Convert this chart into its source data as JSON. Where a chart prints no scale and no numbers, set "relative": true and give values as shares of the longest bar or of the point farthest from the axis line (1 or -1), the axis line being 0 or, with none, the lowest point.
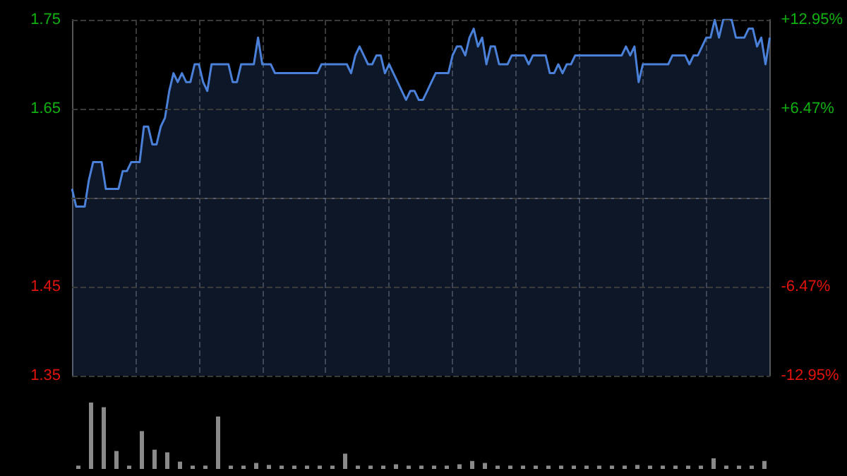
{
  "chart_data": [
    {
      "type": "area",
      "categories": [
        null,
        null,
        null,
        null,
        null,
        null,
        null,
        null,
        null,
        null,
        null,
        null,
        null,
        null,
        null,
        null,
        null,
        null,
        null,
        null,
        null,
        null,
        null,
        null,
        null,
        null,
        null,
        null,
        null,
        null,
        null,
        null,
        null,
        null,
        null,
        null,
        null,
        null,
        null,
        null,
        null,
        null,
        null,
        null,
        null,
        null,
        null,
        null,
        null,
        null,
        null,
        null,
        null,
        null,
        null,
        null,
        null,
        null,
        null,
        null,
        null,
        null,
        null,
        null,
        null,
        null,
        null,
        null,
        null,
        null,
        null,
        null,
        null,
        null,
        null,
        null,
        null,
        null,
        null,
        null,
        null,
        null,
        null,
        null,
        null,
        null,
        null,
        null,
        null,
        null,
        null,
        null,
        null,
        null,
        null,
        null,
        null,
        null,
        null,
        null,
        null,
        null,
        null,
        null,
        null,
        null,
        null,
        null,
        null,
        null,
        null,
        null,
        null,
        null,
        null,
        null,
        null,
        null,
        null,
        null,
        null,
        null,
        null,
        null,
        null,
        null,
        null,
        null,
        null,
        null,
        null,
        null,
        null,
        null,
        null,
        null,
        null,
        null,
        null,
        null,
        null,
        null,
        null,
        null,
        null,
        null,
        null,
        null,
        null,
        null,
        null,
        null,
        null,
        null,
        null,
        null,
        null,
        null,
        null,
        null,
        null,
        null,
        null,
        null,
        null,
        null
      ],
      "ylim": [
        1.35,
        1.75
      ],
      "yticks": [
        1.35,
        1.45,
        {
          "value": 1.55,
          "label": null
        },
        1.65,
        1.75
      ],
      "y2lim": [
        -12.95,
        12.95
      ],
      "y2ticks": [
        {
          "value": -12.95,
          "label": "-12.95%"
        },
        {
          "value": -6.47,
          "label": "-6.47%"
        },
        {
          "value": 6.47,
          "label": "+6.47%"
        },
        {
          "value": 12.95,
          "label": "+12.95%"
        }
      ],
      "grid": true,
      "marker": "none",
      "series": [
        {
          "color": "#4a80d8",
          "values": [
            1.56,
            1.54,
            1.54,
            1.54,
            1.57,
            1.59,
            1.59,
            1.59,
            1.56,
            1.56,
            1.56,
            1.56,
            1.58,
            1.58,
            1.59,
            1.59,
            1.59,
            1.63,
            1.63,
            1.61,
            1.61,
            1.63,
            1.64,
            1.67,
            1.69,
            1.68,
            1.69,
            1.68,
            1.68,
            1.7,
            1.7,
            1.68,
            1.67,
            1.7,
            1.7,
            1.7,
            1.7,
            1.7,
            1.68,
            1.68,
            1.7,
            1.7,
            1.7,
            1.7,
            1.73,
            1.7,
            1.7,
            1.7,
            1.69,
            1.69,
            1.69,
            1.69,
            1.69,
            1.69,
            1.69,
            1.69,
            1.69,
            1.69,
            1.69,
            1.7,
            1.7,
            1.7,
            1.7,
            1.7,
            1.7,
            1.7,
            1.69,
            1.71,
            1.72,
            1.71,
            1.7,
            1.7,
            1.71,
            1.71,
            1.69,
            1.7,
            1.69,
            1.68,
            1.67,
            1.66,
            1.67,
            1.67,
            1.66,
            1.66,
            1.67,
            1.68,
            1.69,
            1.69,
            1.69,
            1.69,
            1.71,
            1.72,
            1.72,
            1.71,
            1.73,
            1.74,
            1.72,
            1.73,
            1.7,
            1.72,
            1.72,
            1.7,
            1.7,
            1.7,
            1.71,
            1.71,
            1.71,
            1.71,
            1.7,
            1.71,
            1.71,
            1.71,
            1.71,
            1.69,
            1.69,
            1.7,
            1.69,
            1.7,
            1.7,
            1.71,
            1.71,
            1.71,
            1.71,
            1.71,
            1.71,
            1.71,
            1.71,
            1.71,
            1.71,
            1.71,
            1.71,
            1.72,
            1.71,
            1.72,
            1.68,
            1.7,
            1.7,
            1.7,
            1.7,
            1.7,
            1.7,
            1.7,
            1.71,
            1.71,
            1.71,
            1.71,
            1.7,
            1.71,
            1.71,
            1.72,
            1.73,
            1.73,
            1.75,
            1.73,
            1.75,
            1.75,
            1.75,
            1.73,
            1.73,
            1.73,
            1.74,
            1.74,
            1.72,
            1.73,
            1.7,
            1.73
          ]
        }
      ]
    },
    {
      "type": "bar",
      "relative": true,
      "color": "#8a8a8a",
      "categories": [
        null,
        null,
        null,
        null,
        null,
        null,
        null,
        null,
        null,
        null,
        null,
        null,
        null,
        null,
        null,
        null,
        null,
        null,
        null,
        null,
        null,
        null,
        null,
        null,
        null,
        null,
        null,
        null,
        null,
        null,
        null,
        null,
        null,
        null,
        null,
        null,
        null,
        null,
        null,
        null,
        null,
        null,
        null,
        null,
        null,
        null,
        null,
        null,
        null,
        null,
        null,
        null,
        null,
        null,
        null
      ],
      "values": [
        0.05,
        1,
        0.93,
        0.27,
        0.05,
        0.57,
        0.29,
        0.25,
        0.11,
        0.05,
        0.05,
        0.79,
        0.05,
        0.05,
        0.09,
        0.06,
        0.05,
        0.05,
        0.05,
        0.05,
        0.05,
        0.23,
        0.05,
        0.05,
        0.05,
        0.07,
        0.05,
        0.05,
        0.05,
        0.05,
        0.07,
        0.12,
        0.09,
        0.05,
        0.05,
        0.05,
        0.05,
        0.05,
        0.05,
        0.05,
        0.05,
        0.05,
        0.05,
        0.05,
        0.06,
        0.05,
        0.05,
        0.05,
        0.05,
        0.05,
        0.16,
        0.05,
        0.05,
        0.05,
        0.12
      ]
    }
  ]
}
